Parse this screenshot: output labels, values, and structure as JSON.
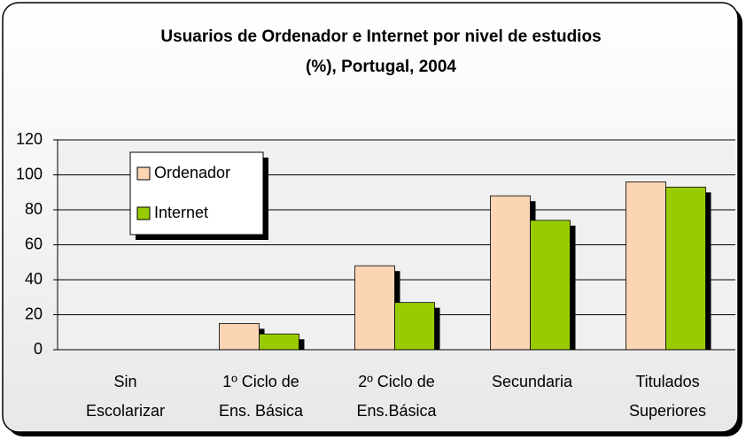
{
  "chart_data": {
    "type": "bar",
    "title": [
      "Usuarios de Ordenador e Internet por nivel de estudios",
      "(%), Portugal, 2004"
    ],
    "categories": [
      [
        "Sin",
        "Escolarizar"
      ],
      [
        "1º Ciclo de",
        "Ens. Básica"
      ],
      [
        "2º Ciclo de",
        "Ens.Básica"
      ],
      [
        "Secundaria"
      ],
      [
        "Titulados",
        "Superiores"
      ]
    ],
    "series": [
      {
        "name": "Ordenador",
        "color": "#fcd5b4",
        "values": [
          0,
          15,
          48,
          88,
          96
        ]
      },
      {
        "name": "Internet",
        "color": "#99cc00",
        "values": [
          0,
          9,
          27,
          74,
          93
        ]
      }
    ],
    "ylim": [
      0,
      120
    ],
    "yticks": [
      0,
      20,
      40,
      60,
      80,
      100,
      120
    ],
    "grid": true,
    "legend": "top-left"
  }
}
